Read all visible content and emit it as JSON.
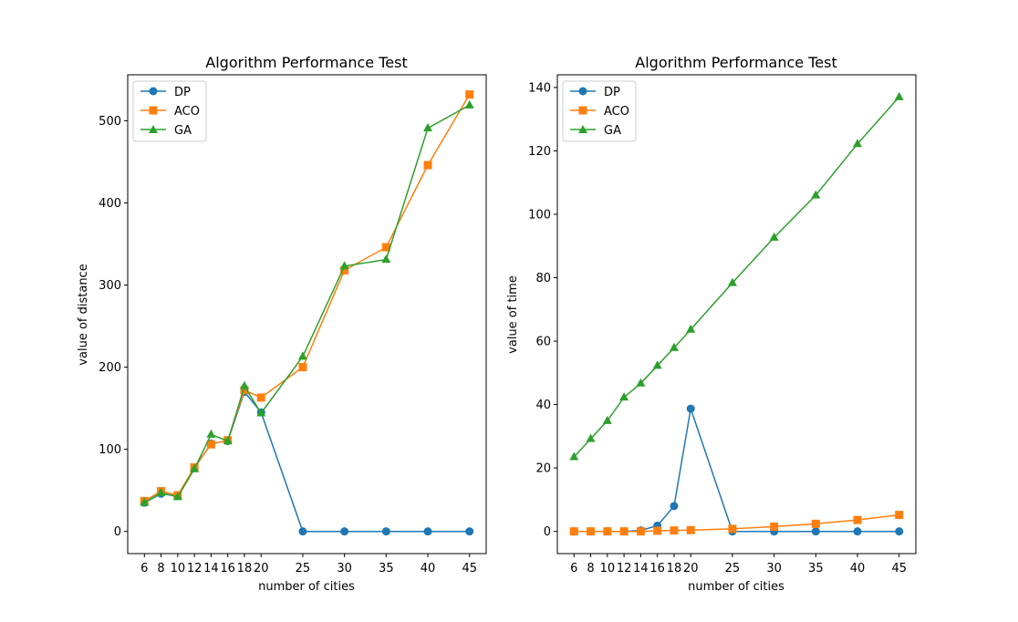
{
  "chart_data": [
    {
      "type": "line",
      "title": "Algorithm Performance Test",
      "xlabel": "number of cities",
      "ylabel": "value of distance",
      "x": [
        6,
        8,
        10,
        12,
        14,
        16,
        18,
        20,
        25,
        30,
        35,
        40,
        45
      ],
      "xlim": [
        4,
        47
      ],
      "ylim": [
        -27,
        556
      ],
      "yticks": [
        0,
        100,
        200,
        300,
        400,
        500
      ],
      "legend": "top-left",
      "grid": false,
      "series": [
        {
          "name": "DP",
          "marker": "circle",
          "color": "#1f77b4",
          "values": [
            35,
            46,
            43,
            77,
            107,
            110,
            170,
            145,
            0,
            0,
            0,
            0,
            0
          ]
        },
        {
          "name": "ACO",
          "marker": "square",
          "color": "#ff7f0e",
          "values": [
            37,
            49,
            44,
            78,
            106,
            111,
            172,
            163,
            200,
            318,
            346,
            446,
            532
          ]
        },
        {
          "name": "GA",
          "marker": "triangle",
          "color": "#2ca02c",
          "values": [
            35,
            47,
            42,
            76,
            118,
            110,
            177,
            144,
            213,
            323,
            331,
            491,
            519
          ]
        }
      ]
    },
    {
      "type": "line",
      "title": "Algorithm Performance Test",
      "xlabel": "number of cities",
      "ylabel": "value of time",
      "x": [
        6,
        8,
        10,
        12,
        14,
        16,
        18,
        20,
        25,
        30,
        35,
        40,
        45
      ],
      "xlim": [
        4,
        47
      ],
      "ylim": [
        -7,
        144
      ],
      "yticks": [
        0,
        20,
        40,
        60,
        80,
        100,
        120,
        140
      ],
      "legend": "top-left",
      "grid": false,
      "series": [
        {
          "name": "DP",
          "marker": "circle",
          "color": "#1f77b4",
          "values": [
            0,
            0,
            0,
            0,
            0.3,
            1.8,
            8,
            38.7,
            0,
            0,
            0,
            0,
            0
          ]
        },
        {
          "name": "ACO",
          "marker": "square",
          "color": "#ff7f0e",
          "values": [
            0,
            0,
            0,
            0,
            0,
            0.2,
            0.3,
            0.4,
            0.8,
            1.5,
            2.4,
            3.6,
            5.2
          ]
        },
        {
          "name": "GA",
          "marker": "triangle",
          "color": "#2ca02c",
          "values": [
            23.5,
            29.2,
            34.9,
            42.3,
            46.7,
            52.3,
            57.9,
            63.7,
            78.4,
            92.7,
            106,
            122.2,
            137
          ]
        }
      ]
    }
  ]
}
